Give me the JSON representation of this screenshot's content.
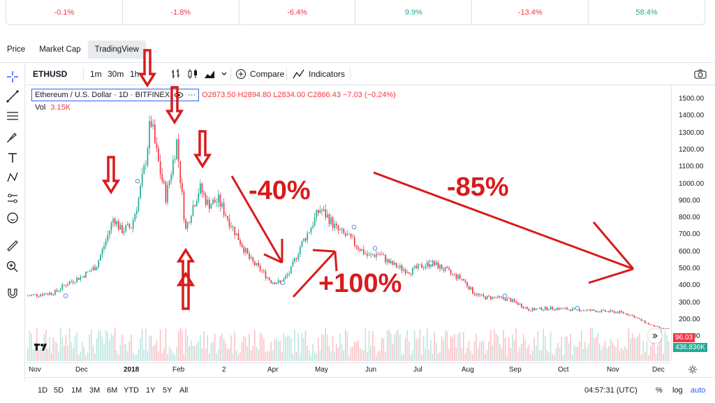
{
  "performance": [
    {
      "value": "-0.1%",
      "color": "#f23645"
    },
    {
      "value": "-1.8%",
      "color": "#f23645"
    },
    {
      "value": "-6.4%",
      "color": "#f23645"
    },
    {
      "value": "9.9%",
      "color": "#22ab94"
    },
    {
      "value": "-13.4%",
      "color": "#f23645"
    },
    {
      "value": "58.4%",
      "color": "#22ab94"
    }
  ],
  "tabs": [
    "Price",
    "Market Cap",
    "TradingView"
  ],
  "toolbar": {
    "symbol": "ETHUSD",
    "intervals": [
      "1m",
      "30m",
      "1h"
    ],
    "compare_label": "Compare",
    "indicators_label": "Indicators"
  },
  "legend": {
    "title": "Ethereum / U.S. Dollar · 1D · BITFINEX",
    "ohlc": "O2873.50 H2894.80 L2834.00 C2866.43 −7.03 (−0.24%)",
    "vol_label": "Vol",
    "vol_value": "3.15K"
  },
  "price_axis": {
    "ticks": [
      "1500.00",
      "1400.00",
      "1300.00",
      "1200.00",
      "1100.00",
      "1000.00",
      "900.00",
      "800.00",
      "700.00",
      "600.00",
      "500.00",
      "400.00",
      "300.00",
      "200.00",
      "100.00"
    ],
    "last_price": "96.03",
    "last_volume": "436.836K",
    "last_price_color": "#f23645",
    "last_volume_color": "#22ab94"
  },
  "time_axis": [
    "Nov",
    "Dec",
    "2018",
    "Feb",
    "2",
    "Apr",
    "May",
    "Jun",
    "Jul",
    "Aug",
    "Sep",
    "Oct",
    "Nov",
    "Dec"
  ],
  "bottom": {
    "ranges": [
      "1D",
      "5D",
      "1M",
      "3M",
      "6M",
      "YTD",
      "1Y",
      "5Y",
      "All"
    ],
    "clock": "04:57:31 (UTC)",
    "percent": "%",
    "log": "log",
    "auto": "auto"
  },
  "annotations": {
    "drop1": "-40%",
    "rise": "+100%",
    "drop2": "-85%"
  },
  "colors": {
    "up": "#22ab94",
    "down": "#f23645",
    "annotation": "#d81b1b",
    "accent": "#2962ff"
  },
  "chart_data": {
    "type": "candlestick",
    "symbol": "ETHUSD",
    "x": [
      "Nov 2017",
      "Dec 2017",
      "Jan 2018",
      "Feb 2018",
      "Mar 2018",
      "Apr 2018",
      "May 2018",
      "Jun 2018",
      "Jul 2018",
      "Aug 2018",
      "Sep 2018",
      "Oct 2018",
      "Nov 2018",
      "Dec 2018"
    ],
    "y": [
      300,
      420,
      1380,
      950,
      780,
      380,
      820,
      560,
      470,
      360,
      210,
      205,
      190,
      96
    ],
    "ylim": [
      0,
      1500
    ],
    "grid": false
  }
}
